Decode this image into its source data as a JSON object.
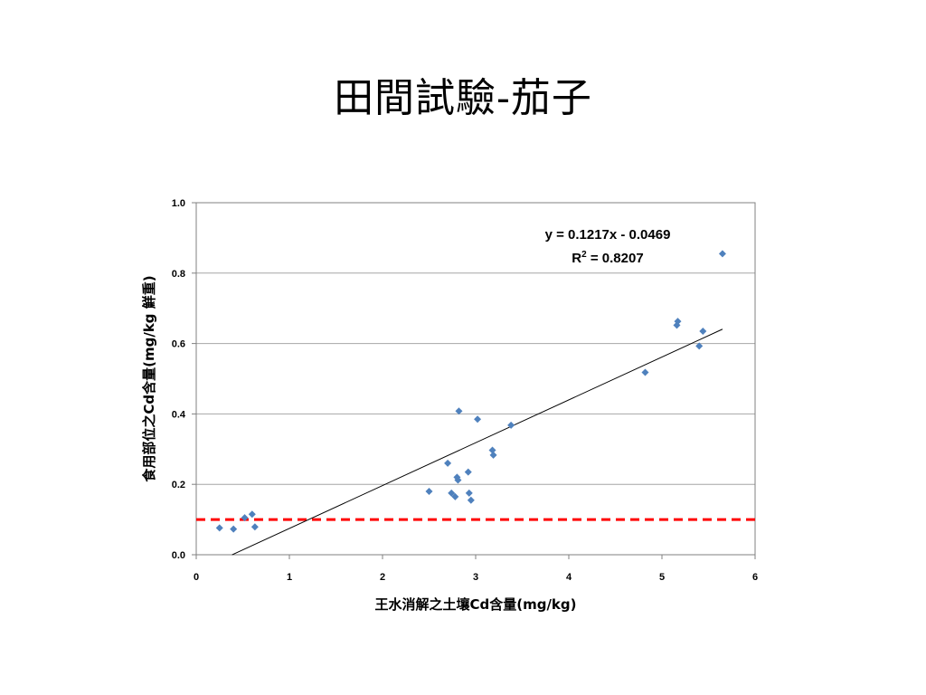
{
  "slide": {
    "title": "田間試驗-茄子"
  },
  "chart_data": {
    "type": "scatter",
    "title": "",
    "xlabel": "王水消解之土壤Cd含量(mg/kg)",
    "ylabel": "食用部位之Cd含量(mg/kg 鮮重)",
    "xlim": [
      0,
      6
    ],
    "ylim": [
      0,
      1.0
    ],
    "x_ticks": [
      "0",
      "1",
      "2",
      "3",
      "4",
      "5",
      "6"
    ],
    "y_ticks": [
      "0.0",
      "0.2",
      "0.4",
      "0.6",
      "0.8",
      "1.0"
    ],
    "grid": "horizontal",
    "marker_color": "#4F81BD",
    "points": [
      {
        "x": 0.25,
        "y": 0.076
      },
      {
        "x": 0.4,
        "y": 0.073
      },
      {
        "x": 0.52,
        "y": 0.105
      },
      {
        "x": 0.6,
        "y": 0.115
      },
      {
        "x": 0.63,
        "y": 0.079
      },
      {
        "x": 2.5,
        "y": 0.18
      },
      {
        "x": 2.7,
        "y": 0.26
      },
      {
        "x": 2.74,
        "y": 0.175
      },
      {
        "x": 2.78,
        "y": 0.165
      },
      {
        "x": 2.8,
        "y": 0.22
      },
      {
        "x": 2.81,
        "y": 0.212
      },
      {
        "x": 2.82,
        "y": 0.408
      },
      {
        "x": 2.92,
        "y": 0.235
      },
      {
        "x": 2.93,
        "y": 0.175
      },
      {
        "x": 2.95,
        "y": 0.155
      },
      {
        "x": 3.02,
        "y": 0.385
      },
      {
        "x": 3.18,
        "y": 0.297
      },
      {
        "x": 3.19,
        "y": 0.283
      },
      {
        "x": 3.38,
        "y": 0.368
      },
      {
        "x": 4.82,
        "y": 0.518
      },
      {
        "x": 5.16,
        "y": 0.652
      },
      {
        "x": 5.17,
        "y": 0.663
      },
      {
        "x": 5.4,
        "y": 0.593
      },
      {
        "x": 5.44,
        "y": 0.635
      },
      {
        "x": 5.65,
        "y": 0.855
      }
    ],
    "trendline": {
      "slope": 0.1217,
      "intercept": -0.0469,
      "x_range": [
        0.385,
        5.65
      ],
      "color": "#000000",
      "equation_label": "y = 0.1217x - 0.0469",
      "r2_prefix": "R",
      "r2_sup": "2",
      "r2_suffix": " = 0.8207"
    },
    "threshold": {
      "y": 0.1,
      "color": "#FF0000",
      "style": "dashed"
    }
  }
}
